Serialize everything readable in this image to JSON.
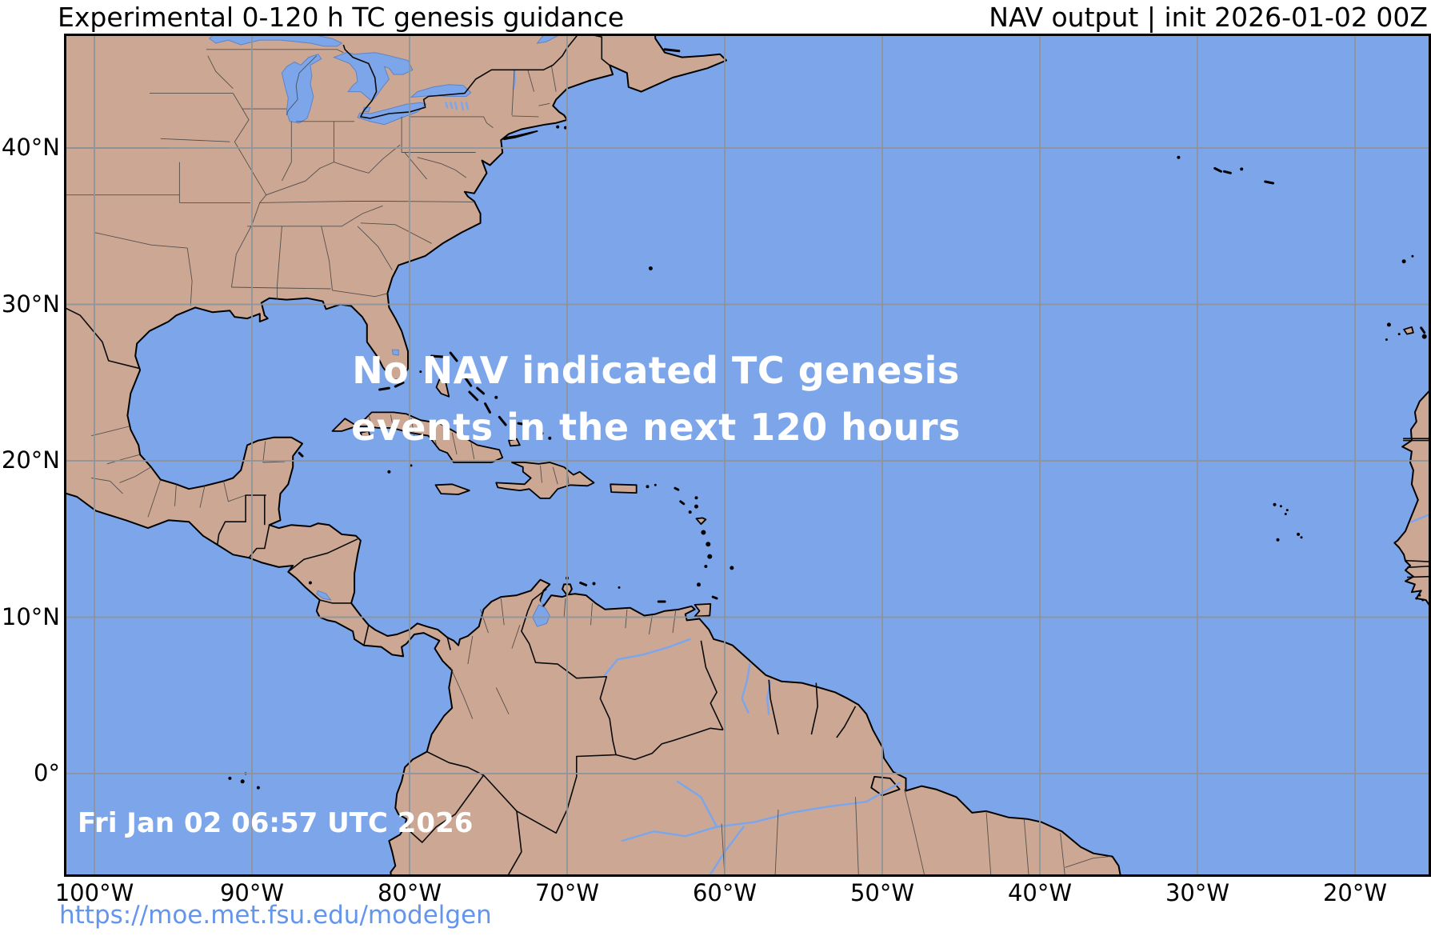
{
  "header": {
    "title_left": "Experimental 0-120 h TC genesis guidance",
    "title_right": "NAV output | init 2026-01-02 00Z"
  },
  "map": {
    "overlay_line1": "No NAV indicated TC genesis",
    "overlay_line2": "events in the next 120 hours",
    "timestamp": "Fri Jan 02 06:57 UTC 2026",
    "xticks": [
      {
        "deg": -100,
        "label": "100°W"
      },
      {
        "deg": -90,
        "label": "90°W"
      },
      {
        "deg": -80,
        "label": "80°W"
      },
      {
        "deg": -70,
        "label": "70°W"
      },
      {
        "deg": -60,
        "label": "60°W"
      },
      {
        "deg": -50,
        "label": "50°W"
      },
      {
        "deg": -40,
        "label": "40°W"
      },
      {
        "deg": -30,
        "label": "30°W"
      },
      {
        "deg": -20,
        "label": "20°W"
      }
    ],
    "yticks": [
      {
        "deg": 40,
        "label": "40°N"
      },
      {
        "deg": 30,
        "label": "30°N"
      },
      {
        "deg": 20,
        "label": "20°N"
      },
      {
        "deg": 10,
        "label": "10°N"
      },
      {
        "deg": 0,
        "label": "0°"
      }
    ],
    "colors": {
      "ocean": "#7DA6EA",
      "land": "#CCA894",
      "coast": "#000000",
      "grid": "#8F9499",
      "admin": "#3F3F3F",
      "border": "#0A0A0A",
      "overlay_text": "#FFFFFF",
      "link": "#6495ED"
    }
  },
  "footer": {
    "url": "https://moe.met.fsu.edu/modelgen"
  }
}
